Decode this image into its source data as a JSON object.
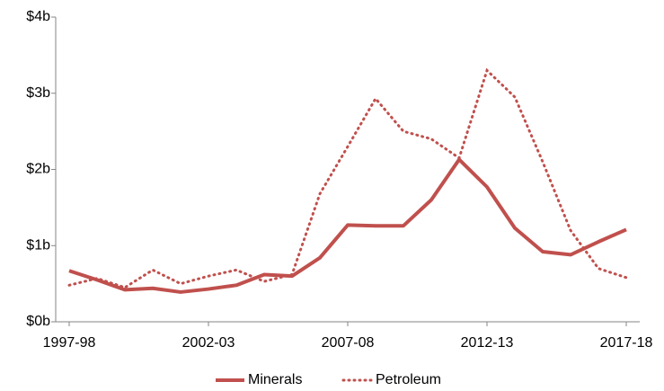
{
  "chart_data": {
    "type": "line",
    "categories": [
      "1997-98",
      null,
      null,
      null,
      null,
      "2002-03",
      null,
      null,
      null,
      null,
      "2007-08",
      null,
      null,
      null,
      null,
      "2012-13",
      null,
      null,
      null,
      null,
      "2017-18"
    ],
    "series": [
      {
        "name": "Minerals",
        "color": "#c0504d",
        "style": "solid",
        "values": [
          0.67,
          0.55,
          0.42,
          0.44,
          0.39,
          0.43,
          0.48,
          0.62,
          0.6,
          0.84,
          1.27,
          1.26,
          1.26,
          1.6,
          2.13,
          1.77,
          1.23,
          0.92,
          0.88,
          1.05,
          1.21
        ]
      },
      {
        "name": "Petroleum",
        "color": "#c0504d",
        "style": "dotted",
        "values": [
          0.48,
          0.57,
          0.45,
          0.68,
          0.5,
          0.6,
          0.68,
          0.53,
          0.62,
          1.68,
          2.3,
          2.93,
          2.5,
          2.4,
          2.15,
          3.3,
          2.95,
          2.1,
          1.2,
          0.7,
          0.58
        ]
      }
    ],
    "ylim": [
      0,
      4
    ],
    "yticks": [
      {
        "value": 0,
        "label": "$0b"
      },
      {
        "value": 1,
        "label": "$1b"
      },
      {
        "value": 2,
        "label": "$2b"
      },
      {
        "value": 3,
        "label": "$3b"
      },
      {
        "value": 4,
        "label": "$4b"
      }
    ],
    "legend": "bottom"
  }
}
